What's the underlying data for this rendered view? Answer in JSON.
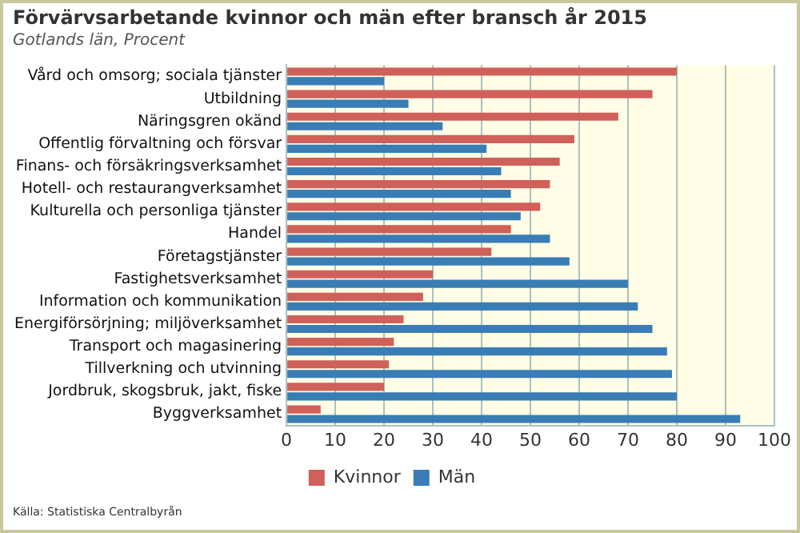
{
  "chart_data": {
    "type": "bar",
    "orientation": "horizontal",
    "title": "Förvärvsarbetande kvinnor och män efter bransch år 2015",
    "subtitle": "Gotlands län, Procent",
    "categories": [
      "Vård och omsorg; sociala tjänster",
      "Utbildning",
      "Näringsgren okänd",
      "Offentlig förvaltning och försvar",
      "Finans- och försäkringsverksamhet",
      "Hotell- och restaurangverksamhet",
      "Kulturella och personliga tjänster",
      "Handel",
      "Företagstjänster",
      "Fastighetsverksamhet",
      "Information och kommunikation",
      "Energiförsörjning; miljöverksamhet",
      "Transport och magasinering",
      "Tillverkning och utvinning",
      "Jordbruk, skogsbruk, jakt, fiske",
      "Byggverksamhet"
    ],
    "series": [
      {
        "name": "Kvinnor",
        "color": "#d0605a",
        "values": [
          80,
          75,
          68,
          59,
          56,
          54,
          52,
          46,
          42,
          30,
          28,
          24,
          22,
          21,
          20,
          7
        ]
      },
      {
        "name": "Män",
        "color": "#3a7db5",
        "values": [
          20,
          25,
          32,
          41,
          44,
          46,
          48,
          54,
          58,
          70,
          72,
          75,
          78,
          79,
          80,
          93
        ]
      }
    ],
    "xlim": [
      0,
      100
    ],
    "xticks": [
      0,
      10,
      20,
      30,
      40,
      50,
      60,
      70,
      80,
      90,
      100
    ],
    "grid": "x",
    "legend": "bottom",
    "annotations": [
      "Källa: Statistiska Centralbyrån"
    ]
  }
}
